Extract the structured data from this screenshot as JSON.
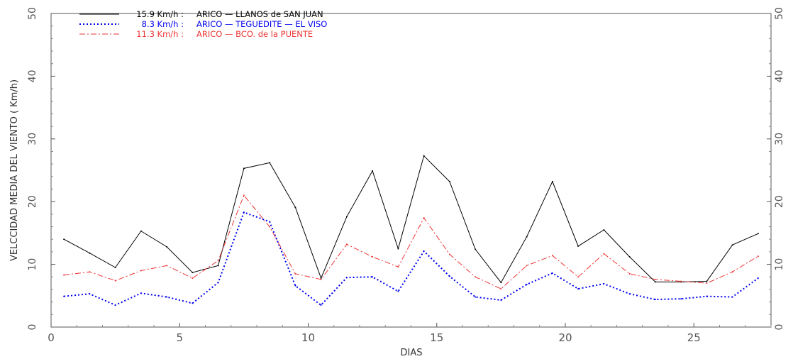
{
  "chart_data": {
    "type": "line",
    "title": "",
    "xlabel": "DIAS",
    "ylabel": "VELCCIDAD MEDIA DEL VIENTO ( Km/h)",
    "xlim": [
      0,
      28
    ],
    "ylim": [
      0,
      50
    ],
    "x_ticks": [
      "0",
      "5",
      "10",
      "15",
      "20",
      "25"
    ],
    "y_ticks": [
      "0",
      "10",
      "20",
      "30",
      "40",
      "50"
    ],
    "x_tick_values": [
      0,
      5,
      10,
      15,
      20,
      25
    ],
    "y_tick_values": [
      0,
      10,
      20,
      30,
      40,
      50
    ],
    "grid": false,
    "legend_position": "top-left",
    "x": [
      0.5,
      1.5,
      2.5,
      3.5,
      4.5,
      5.5,
      6.5,
      7.5,
      8.5,
      9.5,
      10.5,
      11.5,
      12.5,
      13.5,
      14.5,
      15.5,
      16.5,
      17.5,
      18.5,
      19.5,
      20.5,
      21.5,
      22.5,
      23.5,
      24.5,
      25.5,
      26.5,
      27.5
    ],
    "series": [
      {
        "legend_value": "15.9 Km/h :",
        "name": "ARICO — LLANOS de SAN JUAN",
        "color": "#000000",
        "style": "solid",
        "values": [
          14.0,
          11.8,
          9.5,
          15.3,
          12.8,
          8.7,
          9.8,
          25.3,
          26.2,
          19.1,
          7.8,
          17.6,
          24.9,
          12.5,
          27.3,
          23.2,
          12.4,
          7.1,
          14.4,
          23.2,
          12.9,
          15.5,
          11.2,
          7.2,
          7.2,
          7.3,
          13.1,
          14.9
        ]
      },
      {
        "legend_value": "8.3 Km/h :",
        "name": "ARICO — TEGUEDITE — EL VISO",
        "color": "#0000ee",
        "style": "dotted",
        "values": [
          4.9,
          5.3,
          3.5,
          5.4,
          4.8,
          3.8,
          7.1,
          18.3,
          16.8,
          6.6,
          3.5,
          7.9,
          8.0,
          5.7,
          12.1,
          8.1,
          4.8,
          4.3,
          6.8,
          8.6,
          6.1,
          6.9,
          5.3,
          4.4,
          4.5,
          4.9,
          4.8,
          7.8
        ]
      },
      {
        "legend_value": "11.3 Km/h :",
        "name": "ARICO — BCO. de la PUENTE",
        "color": "#ee3333",
        "style": "dashdot",
        "values": [
          8.3,
          8.8,
          7.4,
          9.0,
          9.8,
          7.8,
          10.6,
          21.0,
          16.0,
          8.5,
          7.6,
          13.2,
          11.2,
          9.6,
          17.4,
          11.6,
          8.0,
          6.1,
          9.8,
          11.4,
          8.0,
          11.7,
          8.5,
          7.6,
          7.3,
          7.0,
          8.8,
          11.3
        ]
      }
    ]
  }
}
